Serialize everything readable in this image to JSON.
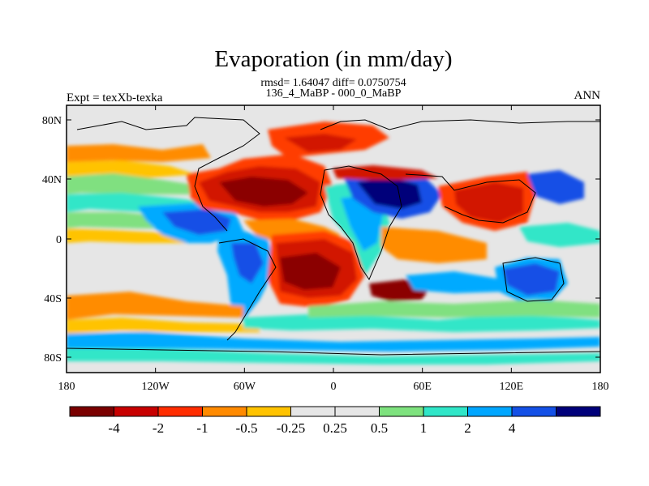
{
  "title": "Evaporation (in mm/day)",
  "stats_line": "rmsd= 1.64047 diff= 0.0750754",
  "subtitle": "136_4_MaBP - 000_0_MaBP",
  "left_label": "Expt = texXb-texka",
  "right_label": "ANN",
  "y_ticks": [
    "80N",
    "40N",
    "0",
    "40S",
    "80S"
  ],
  "x_ticks": [
    "180",
    "120W",
    "60W",
    "0",
    "60E",
    "120E",
    "180"
  ],
  "colorbar": {
    "colors": [
      "#7a0000",
      "#c80000",
      "#ff2d00",
      "#ff8a00",
      "#ffc300",
      "#e6e6e6",
      "#e6e6e6",
      "#7ee27e",
      "#30e6c8",
      "#00a6ff",
      "#1450e6",
      "#00007a"
    ],
    "labels": [
      "-4",
      "-2",
      "-1",
      "-0.5",
      "-0.25",
      "0.25",
      "0.5",
      "1",
      "2",
      "4"
    ]
  },
  "map_palette": {
    "background": "#e6e6e6",
    "dark_red": "#8b0000",
    "red": "#d21400",
    "orange_red": "#ff3c00",
    "orange": "#ff8c00",
    "yellow": "#ffc300",
    "green": "#80e080",
    "cyan": "#30e6c8",
    "light_blue": "#00aaff",
    "blue": "#1450e6",
    "dark_blue": "#00007a"
  }
}
